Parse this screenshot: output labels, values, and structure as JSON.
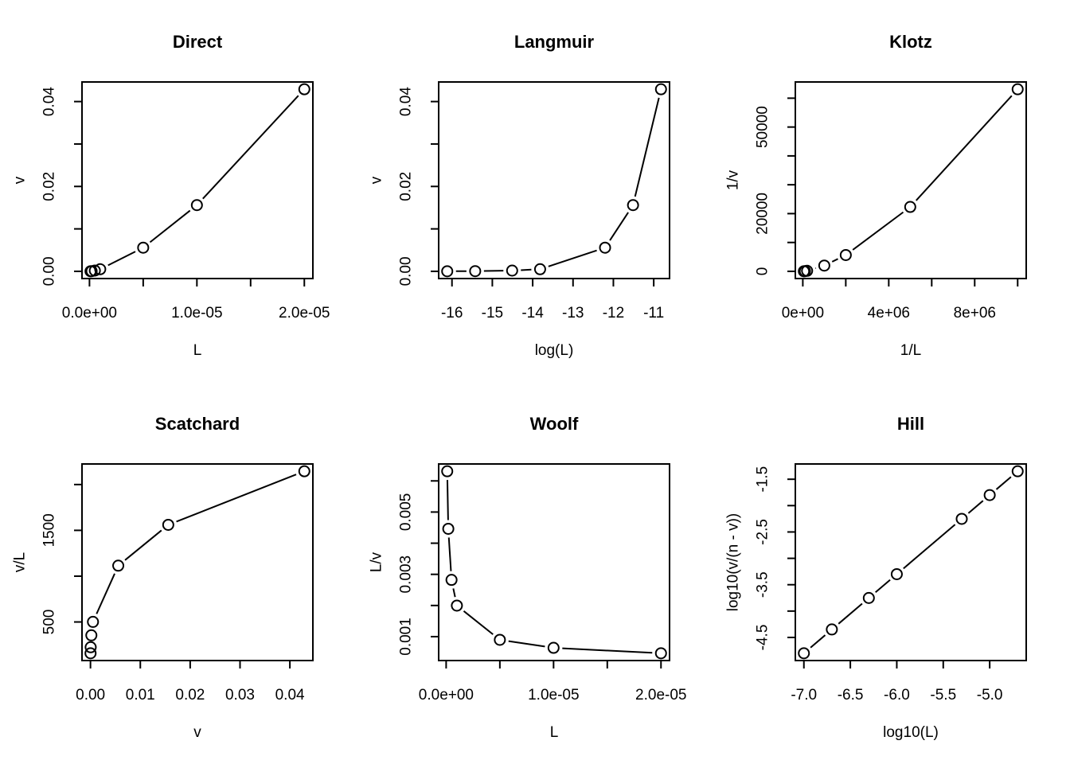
{
  "figure": {
    "background_color": "#ffffff",
    "stroke_color": "#000000",
    "layout": "2 rows x 3 columns of R base plots",
    "marker": "open-circle",
    "grid": "off",
    "legend": "none"
  },
  "chart_data": [
    {
      "id": "direct",
      "type": "line",
      "title": "Direct",
      "xlabel": "L",
      "ylabel": "v",
      "x": [
        1e-07,
        2e-07,
        5e-07,
        1e-06,
        5e-06,
        1e-05,
        2e-05
      ],
      "y": [
        1.5849e-05,
        4.4821e-05,
        0.00017719,
        0.00050094,
        0.0055733,
        0.015602,
        0.0429
      ],
      "xticks": {
        "values": [
          0,
          5e-06,
          1e-05,
          1.5e-05,
          2e-05
        ],
        "labels": [
          "0.0e+00",
          "",
          "1.0e-05",
          "",
          "2.0e-05"
        ]
      },
      "yticks": {
        "values": [
          0,
          0.01,
          0.02,
          0.03,
          0.04
        ],
        "labels": [
          "0.00",
          "",
          "0.02",
          "",
          "0.04"
        ]
      }
    },
    {
      "id": "langmuir",
      "type": "line",
      "title": "Langmuir",
      "xlabel": "log(L)",
      "ylabel": "v",
      "x": [
        -16.118,
        -15.425,
        -14.509,
        -13.816,
        -12.206,
        -11.513,
        -10.82
      ],
      "y": [
        1.5849e-05,
        4.4821e-05,
        0.00017719,
        0.00050094,
        0.0055733,
        0.015602,
        0.0429
      ],
      "xticks": {
        "values": [
          -16,
          -15,
          -14,
          -13,
          -12,
          -11
        ],
        "labels": [
          "-16",
          "-15",
          "-14",
          "-13",
          "-12",
          "-11"
        ]
      },
      "yticks": {
        "values": [
          0,
          0.01,
          0.02,
          0.03,
          0.04
        ],
        "labels": [
          "0.00",
          "",
          "0.02",
          "",
          "0.04"
        ]
      }
    },
    {
      "id": "klotz",
      "type": "line",
      "title": "Klotz",
      "xlabel": "1/L",
      "ylabel": "1/v",
      "x": [
        10000000.0,
        5000000.0,
        2000000.0,
        1000000.0,
        200000.0,
        100000.0,
        50000.0
      ],
      "y": [
        63097,
        22311,
        5643.7,
        1996.3,
        179.43,
        64.095,
        23.31
      ],
      "xticks": {
        "values": [
          0,
          2000000.0,
          4000000.0,
          6000000.0,
          8000000.0,
          10000000.0
        ],
        "labels": [
          "0e+00",
          "",
          "4e+06",
          "",
          "8e+06",
          ""
        ]
      },
      "yticks": {
        "values": [
          0,
          10000,
          20000,
          30000,
          40000,
          50000,
          60000
        ],
        "labels": [
          "0",
          "",
          "20000",
          "",
          "",
          "50000",
          ""
        ]
      }
    },
    {
      "id": "scatchard",
      "type": "line",
      "title": "Scatchard",
      "xlabel": "v",
      "ylabel": "v/L",
      "x": [
        1.5849e-05,
        4.4821e-05,
        0.00017719,
        0.00050094,
        0.0055733,
        0.015602,
        0.0429
      ],
      "y": [
        158.49,
        224.11,
        354.38,
        500.94,
        1114.7,
        1560.2,
        2145.0
      ],
      "xticks": {
        "values": [
          0,
          0.01,
          0.02,
          0.03,
          0.04
        ],
        "labels": [
          "0.00",
          "0.01",
          "0.02",
          "0.03",
          "0.04"
        ]
      },
      "yticks": {
        "values": [
          500,
          1000,
          1500,
          2000
        ],
        "labels": [
          "500",
          "",
          "1500",
          ""
        ]
      }
    },
    {
      "id": "woolf",
      "type": "line",
      "title": "Woolf",
      "xlabel": "L",
      "ylabel": "L/v",
      "x": [
        1e-07,
        2e-07,
        5e-07,
        1e-06,
        5e-06,
        1e-05,
        2e-05
      ],
      "y": [
        0.0063097,
        0.0044622,
        0.0028218,
        0.0019962,
        0.00089714,
        0.00064095,
        0.0004662
      ],
      "xticks": {
        "values": [
          0,
          5e-06,
          1e-05,
          1.5e-05,
          2e-05
        ],
        "labels": [
          "0.0e+00",
          "",
          "1.0e-05",
          "",
          "2.0e-05"
        ]
      },
      "yticks": {
        "values": [
          0.001,
          0.002,
          0.003,
          0.004,
          0.005,
          0.006
        ],
        "labels": [
          "0.001",
          "",
          "0.003",
          "",
          "0.005",
          ""
        ]
      }
    },
    {
      "id": "hill",
      "type": "line",
      "title": "Hill",
      "xlabel": "log10(L)",
      "ylabel": "log10(v/(n - v))",
      "x": [
        -7.0,
        -6.699,
        -6.301,
        -6.0,
        -5.301,
        -5.0,
        -4.699
      ],
      "y": [
        -4.8,
        -4.3485,
        -3.7515,
        -3.3,
        -2.2515,
        -1.8,
        -1.3485
      ],
      "xticks": {
        "values": [
          -7.0,
          -6.5,
          -6.0,
          -5.5,
          -5.0
        ],
        "labels": [
          "-7.0",
          "-6.5",
          "-6.0",
          "-5.5",
          "-5.0"
        ]
      },
      "yticks": {
        "values": [
          -4.5,
          -4.0,
          -3.5,
          -3.0,
          -2.5,
          -2.0,
          -1.5
        ],
        "labels": [
          "-4.5",
          "",
          "-3.5",
          "",
          "-2.5",
          "",
          "-1.5"
        ]
      }
    }
  ]
}
